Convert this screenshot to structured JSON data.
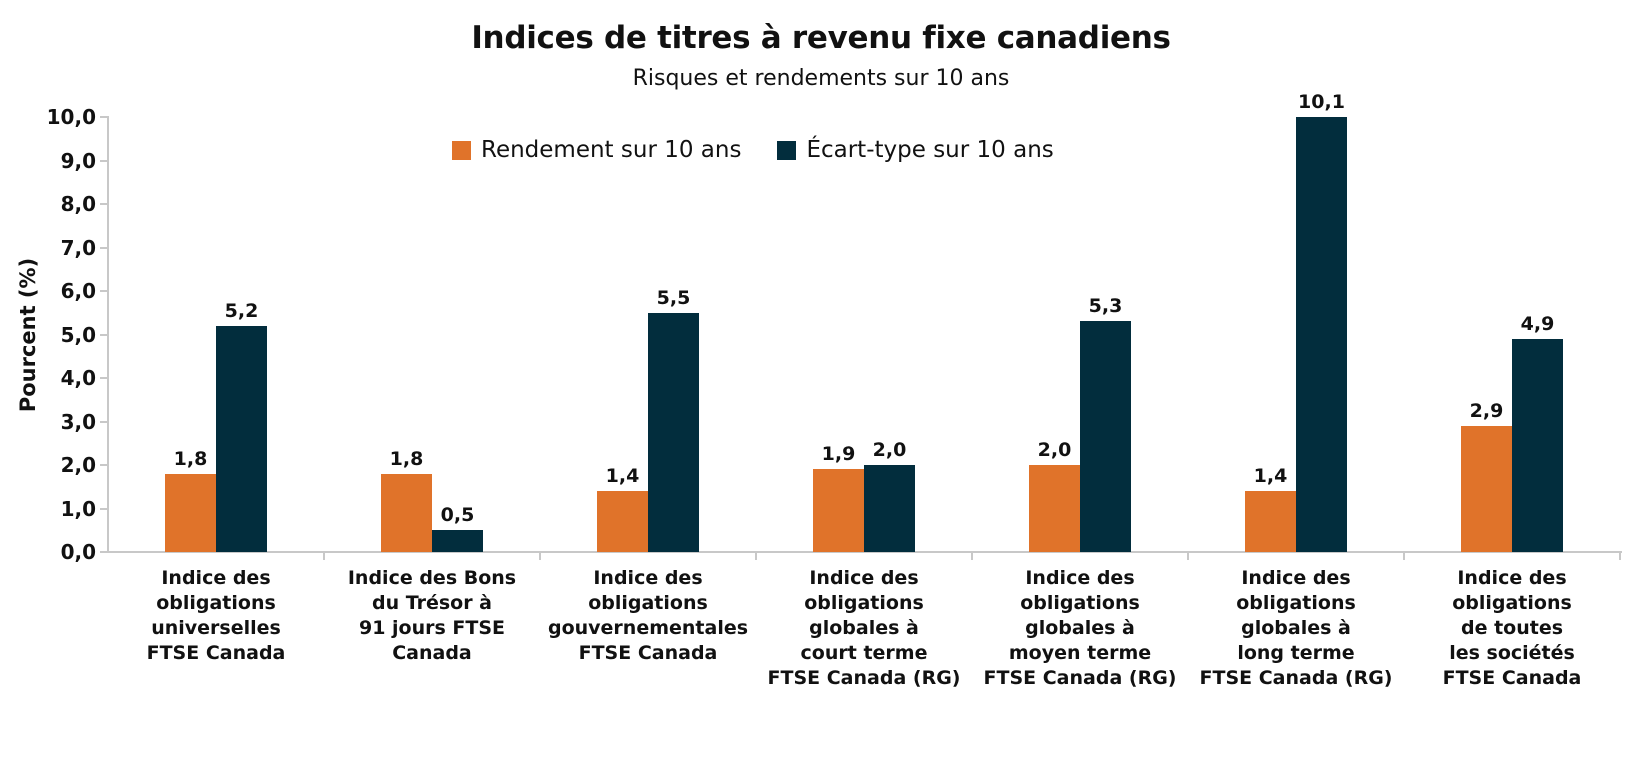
{
  "chart_data": {
    "type": "bar",
    "title": "Indices de titres à revenu fixe canadiens",
    "subtitle": "Risques et rendements sur 10 ans",
    "xlabel": "",
    "ylabel": "Pourcent (%)",
    "ylim": [
      0,
      10
    ],
    "yticks": [
      "0,0",
      "1,0",
      "2,0",
      "3,0",
      "4,0",
      "5,0",
      "6,0",
      "7,0",
      "8,0",
      "9,0",
      "10,0"
    ],
    "grid": false,
    "legend_position": "top-center",
    "categories": [
      [
        "Indice des",
        "obligations",
        "universelles",
        "FTSE Canada"
      ],
      [
        "Indice des Bons",
        "du Trésor à",
        "91 jours FTSE",
        "Canada"
      ],
      [
        "Indice des",
        "obligations",
        "gouvernementales",
        "FTSE Canada"
      ],
      [
        "Indice des",
        "obligations",
        "globales à",
        "court terme",
        "FTSE Canada (RG)"
      ],
      [
        "Indice des",
        "obligations",
        "globales à",
        "moyen terme",
        "FTSE Canada (RG)"
      ],
      [
        "Indice des",
        "obligations",
        "globales à",
        "long terme",
        "FTSE Canada (RG)"
      ],
      [
        "Indice des",
        "obligations",
        "de toutes",
        "les sociétés",
        "FTSE Canada"
      ]
    ],
    "series": [
      {
        "name": "Rendement sur 10 ans",
        "color": "#e0732a",
        "values": [
          1.8,
          1.8,
          1.4,
          1.9,
          2.0,
          1.4,
          2.9
        ],
        "labels": [
          "1,8",
          "1,8",
          "1,4",
          "1,9",
          "2,0",
          "1,4",
          "2,9"
        ]
      },
      {
        "name": "Écart-type sur 10 ans",
        "color": "#022d3d",
        "values": [
          5.2,
          0.5,
          5.5,
          2.0,
          5.3,
          10.1,
          4.9
        ],
        "labels": [
          "5,2",
          "0,5",
          "5,5",
          "2,0",
          "5,3",
          "10,1",
          "4,9"
        ]
      }
    ]
  }
}
